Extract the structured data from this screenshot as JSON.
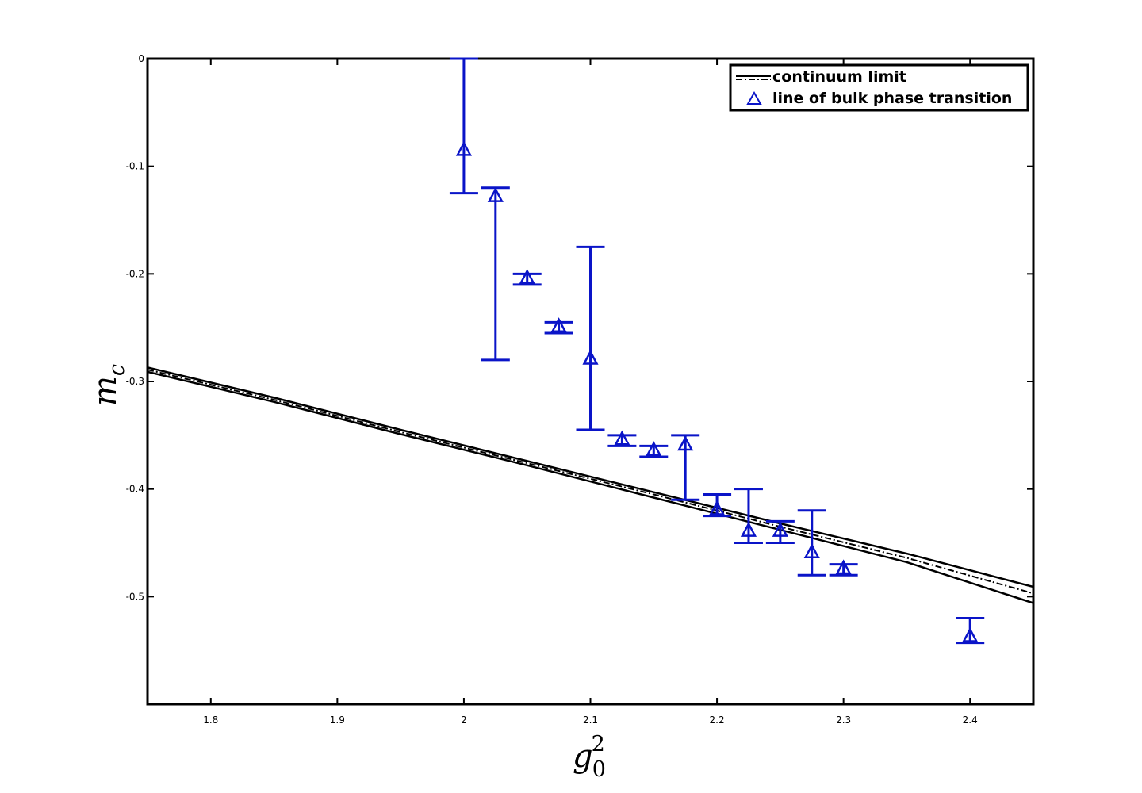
{
  "chart_data": {
    "type": "scatter",
    "title": "",
    "xlabel": "g",
    "xlabel_sup": "2",
    "xlabel_sub": "0",
    "ylabel": "m",
    "ylabel_sub": "c",
    "xlim": [
      1.75,
      2.45
    ],
    "ylim": [
      -0.6,
      0
    ],
    "x_ticks": [
      1.8,
      1.9,
      2,
      2.1,
      2.2,
      2.3,
      2.4
    ],
    "x_tick_labels": [
      "1.8",
      "1.9",
      "2",
      "2.1",
      "2.2",
      "2.3",
      "2.4"
    ],
    "y_ticks": [
      0,
      -0.1,
      -0.2,
      -0.3,
      -0.4,
      -0.5
    ],
    "y_tick_labels": [
      "0",
      "-0.1",
      "-0.2",
      "-0.3",
      "-0.4",
      "-0.5"
    ],
    "grid": false,
    "legend_position": "top-right",
    "legend": [
      {
        "label": "continuum limit",
        "marker": "dash-dot-line"
      },
      {
        "label": "line of bulk phase transition",
        "marker": "triangle"
      }
    ],
    "colors": {
      "points": "#0a14c8",
      "band": "#000000"
    },
    "continuum_limit": {
      "x": [
        1.75,
        1.85,
        1.95,
        2.05,
        2.15,
        2.25,
        2.35,
        2.45
      ],
      "center": [
        -0.289,
        -0.317,
        -0.347,
        -0.376,
        -0.405,
        -0.435,
        -0.464,
        -0.497
      ],
      "upper": [
        -0.287,
        -0.315,
        -0.345,
        -0.374,
        -0.403,
        -0.432,
        -0.46,
        -0.491
      ],
      "lower": [
        -0.291,
        -0.319,
        -0.349,
        -0.378,
        -0.408,
        -0.438,
        -0.468,
        -0.506
      ]
    },
    "series": [
      {
        "marker": "triangle",
        "points": [
          {
            "x": 2.0,
            "y": -0.085,
            "err_top": 0,
            "err_bottom": -0.125
          },
          {
            "x": 2.025,
            "y": -0.128,
            "err_top": -0.12,
            "err_bottom": -0.28
          },
          {
            "x": 2.05,
            "y": -0.204,
            "err_top": -0.2,
            "err_bottom": -0.21
          },
          {
            "x": 2.075,
            "y": -0.249,
            "err_top": -0.245,
            "err_bottom": -0.255
          },
          {
            "x": 2.1,
            "y": -0.279,
            "err_top": -0.175,
            "err_bottom": -0.345
          },
          {
            "x": 2.125,
            "y": -0.354,
            "err_top": -0.35,
            "err_bottom": -0.36
          },
          {
            "x": 2.15,
            "y": -0.364,
            "err_top": -0.36,
            "err_bottom": -0.37
          },
          {
            "x": 2.175,
            "y": -0.359,
            "err_top": -0.35,
            "err_bottom": -0.41
          },
          {
            "x": 2.2,
            "y": -0.419,
            "err_top": -0.405,
            "err_bottom": -0.425
          },
          {
            "x": 2.225,
            "y": -0.439,
            "err_top": -0.4,
            "err_bottom": -0.45
          },
          {
            "x": 2.25,
            "y": -0.439,
            "err_top": -0.43,
            "err_bottom": -0.45
          },
          {
            "x": 2.275,
            "y": -0.459,
            "err_top": -0.42,
            "err_bottom": -0.48
          },
          {
            "x": 2.3,
            "y": -0.474,
            "err_top": -0.47,
            "err_bottom": -0.48
          },
          {
            "x": 2.4,
            "y": -0.537,
            "err_top": -0.52,
            "err_bottom": -0.543
          }
        ]
      }
    ]
  }
}
